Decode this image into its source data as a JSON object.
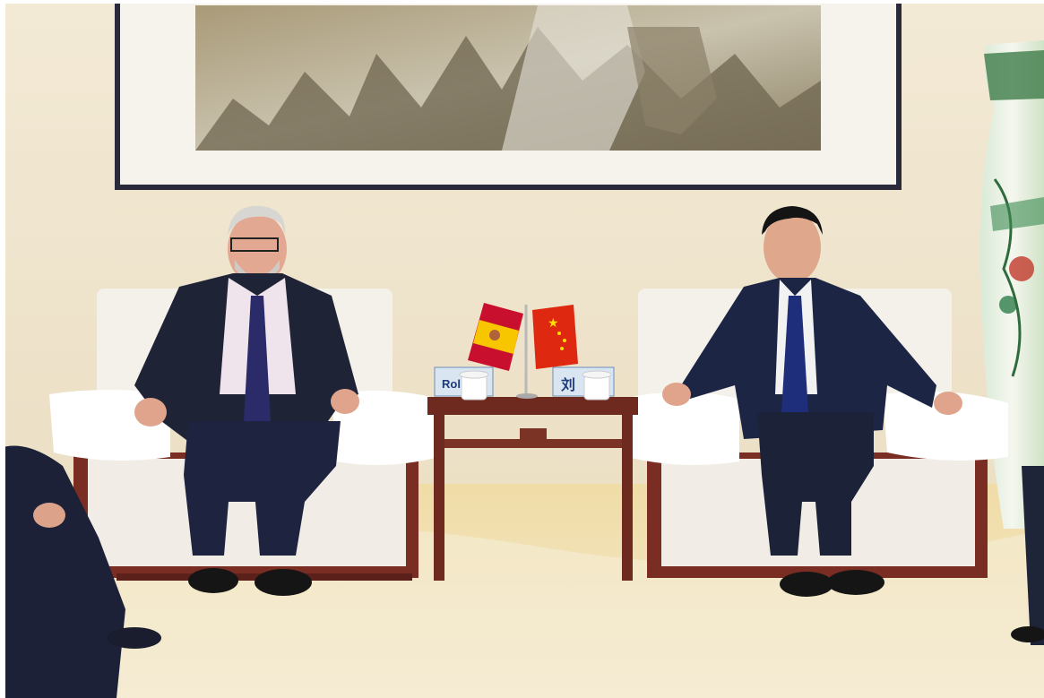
{
  "photo": {
    "nameplates": [
      {
        "text": "Rola"
      },
      {
        "text": "刘"
      }
    ],
    "flags": [
      {
        "country": "Spain",
        "colors": [
          "#c8102e",
          "#f7c600"
        ]
      },
      {
        "country": "China",
        "colors": [
          "#de2910",
          "#ffde00"
        ]
      }
    ]
  }
}
